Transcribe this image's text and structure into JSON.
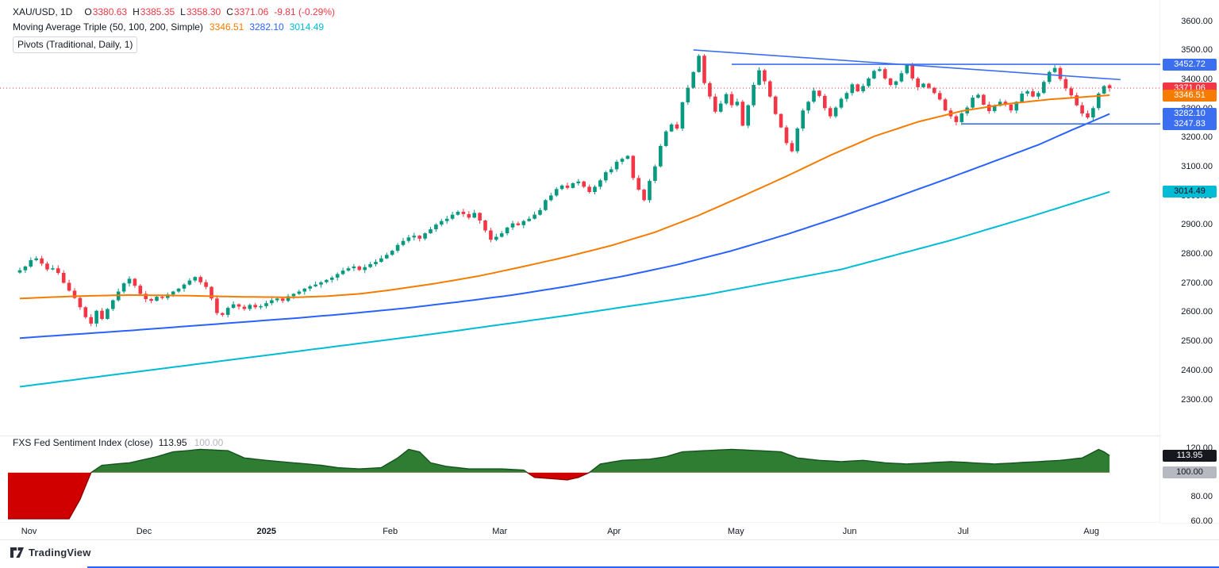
{
  "legend": {
    "symbol": "XAU/USD, 1D",
    "ohlc": [
      {
        "k": "O",
        "v": "3380.63"
      },
      {
        "k": "H",
        "v": "3385.35"
      },
      {
        "k": "L",
        "v": "3358.30"
      },
      {
        "k": "C",
        "v": "3371.06"
      }
    ],
    "change": "-9.81 (-0.29%)",
    "value_color": "#f23645",
    "ma": {
      "title": "Moving Average Triple (50, 100, 200, Simple)",
      "values": [
        {
          "v": "3346.51",
          "color": "#f57c00"
        },
        {
          "v": "3282.10",
          "color": "#2962ff"
        },
        {
          "v": "3014.49",
          "color": "#00bcd4"
        }
      ]
    },
    "pivots": "Pivots (Traditional, Daily, 1)"
  },
  "footer": {
    "brand": "TradingView"
  },
  "chart_data": {
    "type": "candlestick",
    "symbol": "XAU/USD",
    "interval": "1D",
    "ohlc_last": {
      "o": 3380.63,
      "h": 3385.35,
      "l": 3358.3,
      "c": 3371.06,
      "change_text": "-9.81 (-0.29%)"
    },
    "colors": {
      "up": "#089981",
      "down": "#f23645",
      "ma50": "#f57c00",
      "ma100": "#2962ff",
      "ma200": "#00bcd4",
      "trend": "#3b6ff0",
      "price_line": "#f23645",
      "sent_green": "#2f7d33",
      "sent_green_edge": "#14531f",
      "sent_red": "#d10000",
      "sent_red_edge": "#8f0000"
    },
    "closes": [
      2745,
      2758,
      2780,
      2786,
      2768,
      2748,
      2752,
      2736,
      2702,
      2675,
      2650,
      2618,
      2584,
      2562,
      2606,
      2578,
      2612,
      2642,
      2672,
      2700,
      2716,
      2692,
      2664,
      2646,
      2640,
      2654,
      2650,
      2662,
      2672,
      2682,
      2696,
      2710,
      2722,
      2704,
      2688,
      2648,
      2598,
      2592,
      2616,
      2628,
      2620,
      2612,
      2626,
      2618,
      2622,
      2632,
      2642,
      2648,
      2640,
      2656,
      2664,
      2672,
      2682,
      2690,
      2696,
      2704,
      2712,
      2720,
      2732,
      2744,
      2752,
      2758,
      2746,
      2756,
      2766,
      2774,
      2786,
      2798,
      2812,
      2832,
      2846,
      2858,
      2864,
      2854,
      2872,
      2886,
      2902,
      2914,
      2922,
      2936,
      2946,
      2938,
      2926,
      2942,
      2916,
      2882,
      2850,
      2860,
      2872,
      2892,
      2906,
      2900,
      2914,
      2922,
      2936,
      2952,
      2986,
      3002,
      3024,
      3036,
      3028,
      3044,
      3050,
      3032,
      3014,
      3032,
      3054,
      3082,
      3092,
      3118,
      3128,
      3138,
      3062,
      3022,
      2986,
      3052,
      3102,
      3172,
      3222,
      3246,
      3232,
      3322,
      3372,
      3426,
      3482,
      3388,
      3342,
      3290,
      3318,
      3350,
      3312,
      3324,
      3242,
      3312,
      3382,
      3432,
      3394,
      3342,
      3282,
      3236,
      3182,
      3154,
      3232,
      3294,
      3324,
      3362,
      3344,
      3302,
      3274,
      3304,
      3334,
      3354,
      3384,
      3360,
      3378,
      3404,
      3430,
      3436,
      3404,
      3382,
      3394,
      3422,
      3450,
      3404,
      3374,
      3386,
      3372,
      3354,
      3332,
      3294,
      3274,
      3254,
      3284,
      3304,
      3338,
      3348,
      3314,
      3292,
      3310,
      3324,
      3314,
      3294,
      3324,
      3352,
      3360,
      3342,
      3354,
      3392,
      3426,
      3440,
      3402,
      3370,
      3346,
      3312,
      3284,
      3270,
      3302,
      3352,
      3378,
      3371.06
    ],
    "ma50": {
      "name": "SMA 50",
      "last": 3346.51,
      "anchors": [
        [
          0,
          2648
        ],
        [
          10,
          2656
        ],
        [
          20,
          2660
        ],
        [
          30,
          2658
        ],
        [
          40,
          2654
        ],
        [
          50,
          2652
        ],
        [
          56,
          2656
        ],
        [
          62,
          2664
        ],
        [
          68,
          2678
        ],
        [
          76,
          2700
        ],
        [
          84,
          2726
        ],
        [
          92,
          2758
        ],
        [
          100,
          2792
        ],
        [
          108,
          2830
        ],
        [
          116,
          2876
        ],
        [
          124,
          2934
        ],
        [
          132,
          3000
        ],
        [
          140,
          3068
        ],
        [
          148,
          3140
        ],
        [
          156,
          3205
        ],
        [
          164,
          3255
        ],
        [
          172,
          3292
        ],
        [
          180,
          3316
        ],
        [
          188,
          3332
        ],
        [
          194,
          3340
        ],
        [
          199,
          3346.51
        ]
      ]
    },
    "ma100": {
      "name": "SMA 100",
      "last": 3282.1,
      "anchors": [
        [
          0,
          2512
        ],
        [
          10,
          2525
        ],
        [
          20,
          2538
        ],
        [
          30,
          2552
        ],
        [
          40,
          2566
        ],
        [
          50,
          2580
        ],
        [
          60,
          2596
        ],
        [
          70,
          2614
        ],
        [
          80,
          2636
        ],
        [
          90,
          2660
        ],
        [
          100,
          2690
        ],
        [
          110,
          2724
        ],
        [
          120,
          2764
        ],
        [
          130,
          2812
        ],
        [
          140,
          2868
        ],
        [
          150,
          2930
        ],
        [
          160,
          2996
        ],
        [
          170,
          3064
        ],
        [
          178,
          3120
        ],
        [
          186,
          3176
        ],
        [
          192,
          3226
        ],
        [
          196,
          3258
        ],
        [
          199,
          3282.1
        ]
      ]
    },
    "ma200": {
      "name": "SMA 200",
      "last": 3014.49,
      "anchors": [
        [
          0,
          2345
        ],
        [
          25,
          2405
        ],
        [
          50,
          2465
        ],
        [
          75,
          2525
        ],
        [
          100,
          2590
        ],
        [
          125,
          2660
        ],
        [
          150,
          2748
        ],
        [
          170,
          2848
        ],
        [
          185,
          2932
        ],
        [
          199,
          3014.49
        ]
      ]
    },
    "trendlines": [
      {
        "kind": "segment",
        "from": [
          123,
          3502
        ],
        "to": [
          201,
          3400
        ]
      },
      {
        "kind": "hline",
        "value": 3452.72,
        "from": 130
      },
      {
        "kind": "hline",
        "value": 3247.83,
        "from": 172
      }
    ],
    "current_price": 3371.06,
    "price_axis": {
      "ticks": [
        3600,
        3500,
        3400,
        3300,
        3200,
        3100,
        3000,
        2900,
        2800,
        2700,
        2600,
        2500,
        2400,
        2300
      ],
      "badges": [
        {
          "text": "3452.72",
          "value": 3452.72,
          "bg": "#3b6ff0",
          "fg": "#ffffff"
        },
        {
          "text": "3371.06",
          "value": 3371.06,
          "bg": "#f23645",
          "fg": "#ffffff"
        },
        {
          "text": "3346.51",
          "value": 3346.51,
          "bg": "#f57c00",
          "fg": "#ffffff"
        },
        {
          "text": "3282.10",
          "value": 3282.1,
          "bg": "#3b6ff0",
          "fg": "#ffffff"
        },
        {
          "text": "3247.83",
          "value": 3247.83,
          "bg": "#3b6ff0",
          "fg": "#ffffff"
        },
        {
          "text": "3014.49",
          "value": 3014.49,
          "bg": "#00bcd4",
          "fg": "#0c0e15"
        }
      ]
    },
    "sentiment": {
      "title": "FXS Fed Sentiment Index (close)",
      "value_text": "113.95",
      "watermark_text": "100.00",
      "baseline": 100,
      "range": [
        60,
        120
      ],
      "ticks": [
        120,
        80,
        60
      ],
      "badges": [
        {
          "text": "113.95",
          "value": 113.95,
          "bg": "#16181d",
          "fg": "#ffffff"
        },
        {
          "text": "100.00",
          "value": 100,
          "bg": "#b7b9c1",
          "fg": "#131722"
        }
      ],
      "anchors": [
        [
          0,
          62
        ],
        [
          9,
          62
        ],
        [
          11,
          78
        ],
        [
          13,
          100
        ],
        [
          15,
          106
        ],
        [
          20,
          108
        ],
        [
          25,
          113
        ],
        [
          28,
          117
        ],
        [
          33,
          119
        ],
        [
          38,
          118
        ],
        [
          41,
          112
        ],
        [
          45,
          110
        ],
        [
          50,
          108
        ],
        [
          55,
          106
        ],
        [
          58,
          104
        ],
        [
          62,
          103
        ],
        [
          66,
          104
        ],
        [
          69,
          112
        ],
        [
          71,
          119
        ],
        [
          73,
          117
        ],
        [
          75,
          108
        ],
        [
          78,
          105
        ],
        [
          82,
          103
        ],
        [
          88,
          103
        ],
        [
          92,
          102
        ],
        [
          94,
          96
        ],
        [
          100,
          94
        ],
        [
          102,
          96
        ],
        [
          104,
          100
        ],
        [
          106,
          107
        ],
        [
          110,
          110
        ],
        [
          115,
          111
        ],
        [
          118,
          113
        ],
        [
          121,
          117
        ],
        [
          125,
          118
        ],
        [
          130,
          119
        ],
        [
          135,
          118
        ],
        [
          139,
          117
        ],
        [
          142,
          112
        ],
        [
          146,
          110
        ],
        [
          150,
          109
        ],
        [
          154,
          110
        ],
        [
          158,
          108
        ],
        [
          162,
          107
        ],
        [
          166,
          108
        ],
        [
          170,
          109
        ],
        [
          174,
          108
        ],
        [
          178,
          107
        ],
        [
          182,
          108
        ],
        [
          186,
          109
        ],
        [
          190,
          110
        ],
        [
          194,
          112
        ],
        [
          197,
          119
        ],
        [
          198,
          117
        ],
        [
          199,
          113.95
        ]
      ]
    },
    "time_axis": [
      {
        "label": "Nov",
        "i": 2
      },
      {
        "label": "Dec",
        "i": 23
      },
      {
        "label": "2025",
        "i": 45,
        "bold": true
      },
      {
        "label": "Feb",
        "i": 68
      },
      {
        "label": "Mar",
        "i": 88
      },
      {
        "label": "Apr",
        "i": 109
      },
      {
        "label": "May",
        "i": 131
      },
      {
        "label": "Jun",
        "i": 152
      },
      {
        "label": "Jul",
        "i": 173
      },
      {
        "label": "Aug",
        "i": 196
      }
    ]
  }
}
